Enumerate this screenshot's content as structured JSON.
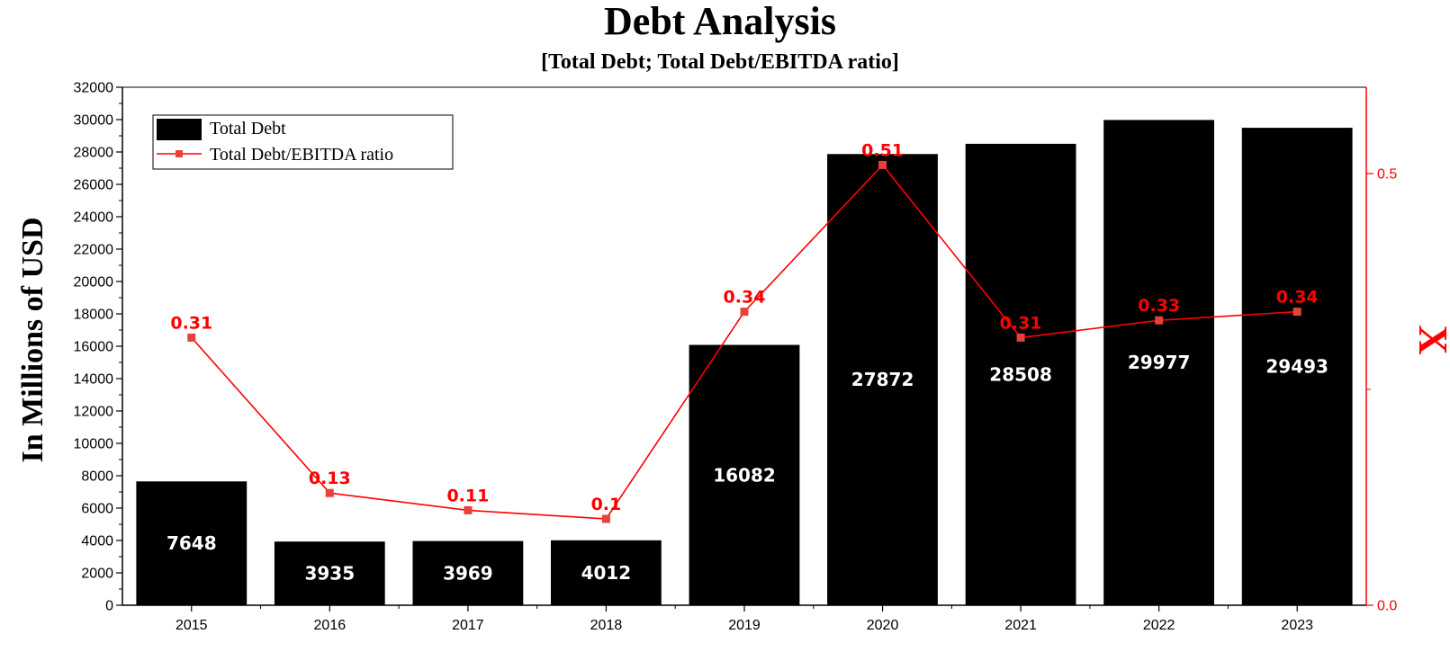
{
  "chart_data": {
    "type": "bar",
    "title": "Debt Analysis",
    "subtitle": "[Total Debt; Total Debt/EBITDA ratio]",
    "ylabel": "In Millions of USD",
    "y2label": "X",
    "categories": [
      "2015",
      "2016",
      "2017",
      "2018",
      "2019",
      "2020",
      "2021",
      "2022",
      "2023"
    ],
    "ylim": [
      0,
      32000
    ],
    "yticks": [
      "0",
      "2000",
      "4000",
      "6000",
      "8000",
      "10000",
      "12000",
      "14000",
      "16000",
      "18000",
      "20000",
      "22000",
      "24000",
      "26000",
      "28000",
      "30000",
      "32000"
    ],
    "y2lim": [
      0,
      0.6
    ],
    "y2ticks": [
      "0.0",
      "0.5"
    ],
    "legend_position": "top-left",
    "series": [
      {
        "name": "Total Debt",
        "type": "bar",
        "color": "#000000",
        "values": [
          7648,
          3935,
          3969,
          4012,
          16082,
          27872,
          28508,
          29977,
          29493
        ],
        "labels": [
          "7648",
          "3935",
          "3969",
          "4012",
          "16082",
          "27872",
          "28508",
          "29977",
          "29493"
        ]
      },
      {
        "name": "Total Debt/EBITDA ratio",
        "type": "line",
        "axis": "right",
        "color": "#ff0000",
        "values": [
          0.31,
          0.13,
          0.11,
          0.1,
          0.34,
          0.51,
          0.31,
          0.33,
          0.34
        ],
        "labels": [
          "0.31",
          "0.13",
          "0.11",
          "0.1",
          "0.34",
          "0.51",
          "0.31",
          "0.33",
          "0.34"
        ]
      }
    ]
  }
}
